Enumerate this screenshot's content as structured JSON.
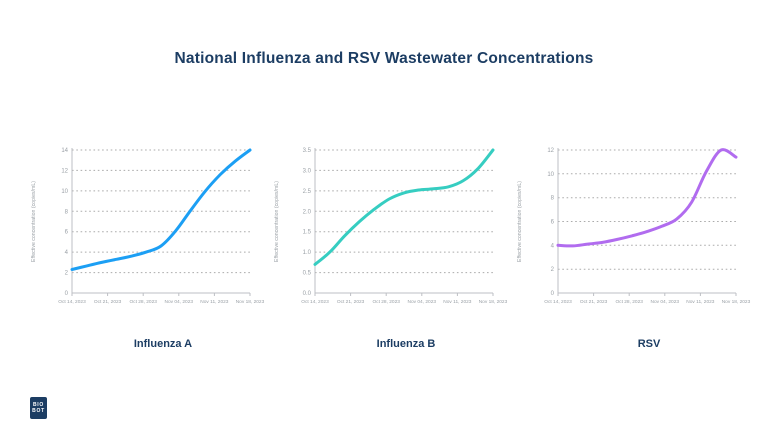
{
  "title": "National Influenza and RSV Wastewater Concentrations",
  "logo": {
    "line1": "BIO",
    "line2": "BOT"
  },
  "colors": {
    "title_navy": "#1C3D63",
    "grid_gray": "#ABABAB",
    "axis_gray": "#BDBFC4",
    "tick_text": "#9AA0A6",
    "influenza_a_line": "#1C9FF4",
    "influenza_b_line": "#36CDC1",
    "rsv_line": "#B16CEF"
  },
  "chart_data": [
    {
      "type": "line",
      "name": "Influenza A",
      "color": "#1C9FF4",
      "ylabel": "Effective concentration (copies/mL)",
      "xlabel": "",
      "ylim": [
        0,
        14
      ],
      "yticks": [
        "0",
        "2",
        "4",
        "6",
        "8",
        "10",
        "12",
        "14"
      ],
      "x_labels": [
        "Oct 14, 2023",
        "Oct 21, 2023",
        "Oct 28, 2023",
        "Nov 04, 2023",
        "Nov 11, 2023",
        "Nov 18, 2023"
      ],
      "values": [
        2.3,
        2.65,
        3.0,
        3.3,
        3.6,
        4.0,
        4.6,
        6.1,
        8.1,
        10.0,
        11.6,
        12.9,
        14.0
      ],
      "grid": true,
      "legend": "none"
    },
    {
      "type": "line",
      "name": "Influenza B",
      "color": "#36CDC1",
      "ylabel": "Effective concentration (copies/mL)",
      "xlabel": "",
      "ylim": [
        0,
        3.5
      ],
      "yticks": [
        "0.0",
        "0.5",
        "1.0",
        "1.5",
        "2.0",
        "2.5",
        "3.0",
        "3.5"
      ],
      "x_labels": [
        "Oct 14, 2023",
        "Oct 21, 2023",
        "Oct 28, 2023",
        "Nov 04, 2023",
        "Nov 11, 2023",
        "Nov 18, 2023"
      ],
      "values": [
        0.7,
        1.0,
        1.4,
        1.75,
        2.05,
        2.3,
        2.45,
        2.52,
        2.55,
        2.6,
        2.75,
        3.05,
        3.5
      ],
      "grid": true,
      "legend": "none"
    },
    {
      "type": "line",
      "name": "RSV",
      "color": "#B16CEF",
      "ylabel": "Effective concentration (copies/mL)",
      "xlabel": "",
      "ylim": [
        0,
        12
      ],
      "yticks": [
        "0",
        "2",
        "4",
        "6",
        "8",
        "10",
        "12"
      ],
      "x_labels": [
        "Oct 14, 2023",
        "Oct 21, 2023",
        "Oct 28, 2023",
        "Nov 04, 2023",
        "Nov 11, 2023",
        "Nov 18, 2023"
      ],
      "values": [
        4.0,
        3.95,
        4.1,
        4.25,
        4.5,
        4.8,
        5.15,
        5.6,
        6.2,
        7.6,
        10.2,
        12.0,
        11.4
      ],
      "grid": true,
      "legend": "none"
    }
  ]
}
